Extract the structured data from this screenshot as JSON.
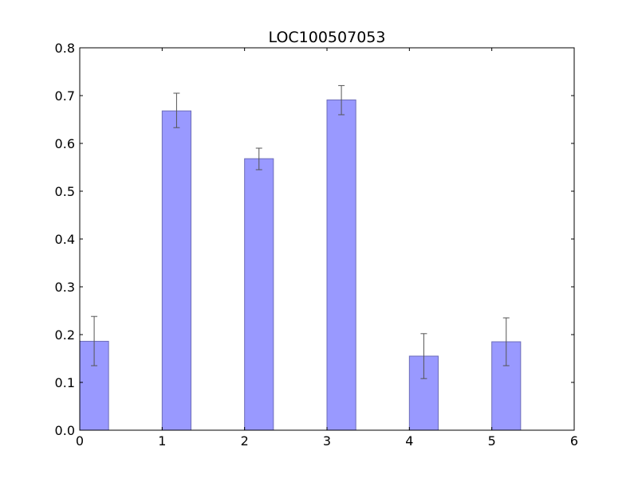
{
  "chart_data": {
    "type": "bar",
    "title": "LOC100507053",
    "xlabel": "",
    "ylabel": "",
    "x": [
      0,
      1,
      2,
      3,
      4,
      5
    ],
    "values": [
      0.186,
      0.668,
      0.568,
      0.691,
      0.155,
      0.185
    ],
    "error": {
      "low": [
        0.135,
        0.633,
        0.545,
        0.66,
        0.108,
        0.135
      ],
      "high": [
        0.238,
        0.705,
        0.59,
        0.721,
        0.202,
        0.235
      ]
    },
    "xlim": [
      0,
      6
    ],
    "ylim": [
      0.0,
      0.8
    ],
    "xticks": [
      "0",
      "1",
      "2",
      "3",
      "4",
      "5",
      "6"
    ],
    "yticks": [
      "0.0",
      "0.1",
      "0.2",
      "0.3",
      "0.4",
      "0.5",
      "0.6",
      "0.7",
      "0.8"
    ],
    "grid": false,
    "bar_color": "#9999ff",
    "bar_edge_color": "#6c6cb8",
    "error_color": "#555555"
  }
}
